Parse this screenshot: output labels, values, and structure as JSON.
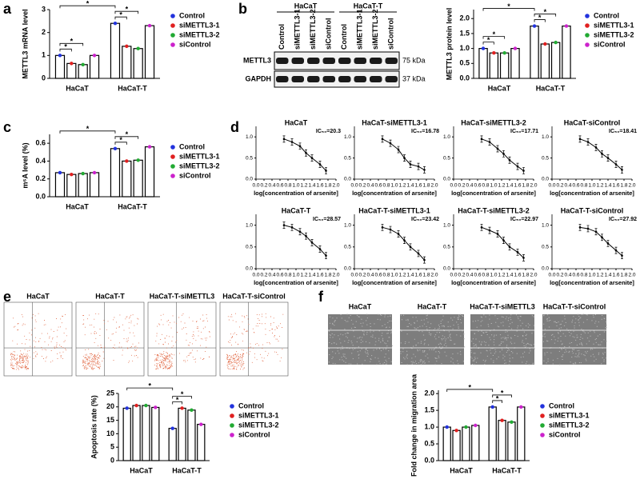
{
  "figure": {
    "panels": [
      "a",
      "b",
      "c",
      "d",
      "e",
      "f"
    ],
    "blot": {
      "groups": [
        "HaCaT",
        "HaCaT-T"
      ],
      "lanes": [
        "Control",
        "siMETTL3-1",
        "siMETTL3-2",
        "siControl",
        "Control",
        "siMETTL3-1",
        "siMETTL3-2",
        "siControl"
      ],
      "rows": [
        "METTL3",
        "GAPDH"
      ],
      "sizes": [
        "75 kDa",
        "37 kDa"
      ]
    },
    "flow_titles": [
      "HaCaT",
      "HaCaT-T",
      "HaCaT-T-siMETTL3",
      "HaCaT-T-siControl"
    ],
    "wound_titles": [
      "HaCaT",
      "HaCaT-T",
      "HaCaT-T-siMETTL3",
      "HaCaT-T-siControl"
    ]
  },
  "chart_data": [
    {
      "type": "bar",
      "ylabel": "METTL3 mRNA level",
      "categories": [
        "HaCaT",
        "HaCaT-T"
      ],
      "series": [
        {
          "name": "Control",
          "color": "#2233dd",
          "values": [
            1.0,
            2.4
          ]
        },
        {
          "name": "siMETTL3-1",
          "color": "#e02020",
          "values": [
            0.65,
            1.4
          ]
        },
        {
          "name": "siMETTL3-2",
          "color": "#22aa33",
          "values": [
            0.6,
            1.3
          ]
        },
        {
          "name": "siControl",
          "color": "#cc22cc",
          "values": [
            1.0,
            2.3
          ]
        }
      ],
      "ylim": [
        0,
        3
      ],
      "yticks": [
        0,
        1,
        2,
        3
      ],
      "significance": [
        "*",
        "*",
        "*",
        "*",
        "*"
      ]
    },
    {
      "type": "bar",
      "ylabel": "METTL3 protein level",
      "categories": [
        "HaCaT",
        "HaCaT-T"
      ],
      "series": [
        {
          "name": "Control",
          "color": "#2233dd",
          "values": [
            1.0,
            1.75
          ]
        },
        {
          "name": "siMETTL3-1",
          "color": "#e02020",
          "values": [
            0.85,
            1.15
          ]
        },
        {
          "name": "siMETTL3-2",
          "color": "#22aa33",
          "values": [
            0.85,
            1.2
          ]
        },
        {
          "name": "siControl",
          "color": "#cc22cc",
          "values": [
            1.0,
            1.75
          ]
        }
      ],
      "ylim": [
        0,
        2.3
      ],
      "yticks": [
        {
          "value": 0,
          "label": "0.0"
        },
        0.5,
        {
          "value": 1,
          "label": "1.0"
        },
        1.5,
        {
          "value": 2,
          "label": "2.0"
        }
      ],
      "significance": [
        "*",
        "*",
        "*",
        "*",
        "*"
      ]
    },
    {
      "type": "bar",
      "ylabel": "m⁶A level (%)",
      "categories": [
        "HaCaT",
        "HaCaT-T"
      ],
      "series": [
        {
          "name": "Control",
          "color": "#2233dd",
          "values": [
            0.27,
            0.54
          ]
        },
        {
          "name": "siMETTL3-1",
          "color": "#e02020",
          "values": [
            0.25,
            0.4
          ]
        },
        {
          "name": "siMETTL3-2",
          "color": "#22aa33",
          "values": [
            0.26,
            0.41
          ]
        },
        {
          "name": "siControl",
          "color": "#cc22cc",
          "values": [
            0.27,
            0.56
          ]
        }
      ],
      "ylim": [
        0,
        0.7
      ],
      "yticks": [
        {
          "value": 0,
          "label": "0.0"
        },
        0.2,
        0.4,
        0.6
      ],
      "significance": [
        "*",
        "*",
        "*"
      ]
    },
    {
      "type": "line",
      "title": "HaCaT",
      "annotation": "IC₅₀=20.3",
      "xlabel": "log[concentration of arsenite]",
      "x": [
        0.7,
        0.9,
        1.1,
        1.25,
        1.4,
        1.6,
        1.75
      ],
      "values": [
        0.95,
        0.88,
        0.78,
        0.62,
        0.5,
        0.35,
        0.2
      ],
      "color": "#000000",
      "xlim": [
        0,
        2
      ],
      "xticks": [
        {
          "value": 0,
          "label": "0.0"
        },
        0.2,
        0.4,
        0.6,
        0.8,
        {
          "value": 1,
          "label": "1.0"
        },
        1.2,
        1.4,
        1.6,
        1.8,
        {
          "value": 2,
          "label": "2.0"
        }
      ],
      "ylim": [
        0,
        1.25
      ],
      "yticks": [
        {
          "value": 0,
          "label": "0.0"
        },
        0.5,
        {
          "value": 1,
          "label": "1.0"
        }
      ]
    },
    {
      "type": "line",
      "title": "HaCaT-siMETTL3-1",
      "annotation": "IC₅₀=16.78",
      "xlabel": "log[concentration of arsenite]",
      "x": [
        0.7,
        0.9,
        1.1,
        1.25,
        1.4,
        1.6,
        1.75
      ],
      "values": [
        0.95,
        0.85,
        0.7,
        0.5,
        0.35,
        0.3,
        0.22
      ],
      "color": "#000000",
      "xlim": [
        0,
        2
      ],
      "xticks": [
        {
          "value": 0,
          "label": "0.0"
        },
        0.2,
        0.4,
        0.6,
        0.8,
        {
          "value": 1,
          "label": "1.0"
        },
        1.2,
        1.4,
        1.6,
        1.8,
        {
          "value": 2,
          "label": "2.0"
        }
      ],
      "ylim": [
        0,
        1.25
      ],
      "yticks": [
        {
          "value": 0,
          "label": "0.0"
        },
        0.5,
        {
          "value": 1,
          "label": "1.0"
        }
      ]
    },
    {
      "type": "line",
      "title": "HaCaT-siMETTL3-2",
      "annotation": "IC₅₀=17.71",
      "xlabel": "log[concentration of arsenite]",
      "x": [
        0.7,
        0.9,
        1.1,
        1.25,
        1.4,
        1.6,
        1.75
      ],
      "values": [
        0.95,
        0.88,
        0.72,
        0.6,
        0.45,
        0.3,
        0.2
      ],
      "color": "#000000",
      "xlim": [
        0,
        2
      ],
      "xticks": [
        {
          "value": 0,
          "label": "0.0"
        },
        0.2,
        0.4,
        0.6,
        0.8,
        {
          "value": 1,
          "label": "1.0"
        },
        1.2,
        1.4,
        1.6,
        1.8,
        {
          "value": 2,
          "label": "2.0"
        }
      ],
      "ylim": [
        0,
        1.25
      ],
      "yticks": [
        {
          "value": 0,
          "label": "0.0"
        },
        0.5,
        {
          "value": 1,
          "label": "1.0"
        }
      ]
    },
    {
      "type": "line",
      "title": "HaCaT-siControl",
      "annotation": "IC₅₀=18.41",
      "xlabel": "log[concentration of arsenite]",
      "x": [
        0.7,
        0.9,
        1.1,
        1.25,
        1.4,
        1.6,
        1.75
      ],
      "values": [
        0.95,
        0.88,
        0.75,
        0.6,
        0.5,
        0.35,
        0.22
      ],
      "color": "#000000",
      "xlim": [
        0,
        2
      ],
      "xticks": [
        {
          "value": 0,
          "label": "0.0"
        },
        0.2,
        0.4,
        0.6,
        0.8,
        {
          "value": 1,
          "label": "1.0"
        },
        1.2,
        1.4,
        1.6,
        1.8,
        {
          "value": 2,
          "label": "2.0"
        }
      ],
      "ylim": [
        0,
        1.25
      ],
      "yticks": [
        {
          "value": 0,
          "label": "0.0"
        },
        0.5,
        {
          "value": 1,
          "label": "1.0"
        }
      ]
    },
    {
      "type": "line",
      "title": "HaCaT-T",
      "annotation": "IC₅₀=28.57",
      "xlabel": "log[concentration of arsenite]",
      "x": [
        0.7,
        0.9,
        1.1,
        1.25,
        1.4,
        1.6,
        1.75
      ],
      "values": [
        1.0,
        0.95,
        0.85,
        0.75,
        0.6,
        0.45,
        0.3
      ],
      "color": "#000000",
      "xlim": [
        0,
        2
      ],
      "xticks": [
        {
          "value": 0,
          "label": "0.0"
        },
        0.2,
        0.4,
        0.6,
        0.8,
        {
          "value": 1,
          "label": "1.0"
        },
        1.2,
        1.4,
        1.6,
        1.8,
        {
          "value": 2,
          "label": "2.0"
        }
      ],
      "ylim": [
        0,
        1.25
      ],
      "yticks": [
        {
          "value": 0,
          "label": "0.0"
        },
        0.5,
        {
          "value": 1,
          "label": "1.0"
        }
      ]
    },
    {
      "type": "line",
      "title": "HaCaT-T-siMETTL3-1",
      "annotation": "IC₅₀=23.42",
      "xlabel": "log[concentration of arsenite]",
      "x": [
        0.7,
        0.9,
        1.1,
        1.25,
        1.4,
        1.6,
        1.75
      ],
      "values": [
        0.95,
        0.9,
        0.8,
        0.65,
        0.5,
        0.35,
        0.2
      ],
      "color": "#000000",
      "xlim": [
        0,
        2
      ],
      "xticks": [
        {
          "value": 0,
          "label": "0.0"
        },
        0.2,
        0.4,
        0.6,
        0.8,
        {
          "value": 1,
          "label": "1.0"
        },
        1.2,
        1.4,
        1.6,
        1.8,
        {
          "value": 2,
          "label": "2.0"
        }
      ],
      "ylim": [
        0,
        1.25
      ],
      "yticks": [
        {
          "value": 0,
          "label": "0.0"
        },
        0.5,
        {
          "value": 1,
          "label": "1.0"
        }
      ]
    },
    {
      "type": "line",
      "title": "HaCaT-T-siMETTL3-2",
      "annotation": "IC₅₀=22.97",
      "xlabel": "log[concentration of arsenite]",
      "x": [
        0.7,
        0.9,
        1.1,
        1.25,
        1.4,
        1.6,
        1.75
      ],
      "values": [
        0.95,
        0.88,
        0.8,
        0.65,
        0.5,
        0.38,
        0.25
      ],
      "color": "#000000",
      "xlim": [
        0,
        2
      ],
      "xticks": [
        {
          "value": 0,
          "label": "0.0"
        },
        0.2,
        0.4,
        0.6,
        0.8,
        {
          "value": 1,
          "label": "1.0"
        },
        1.2,
        1.4,
        1.6,
        1.8,
        {
          "value": 2,
          "label": "2.0"
        }
      ],
      "ylim": [
        0,
        1.25
      ],
      "yticks": [
        {
          "value": 0,
          "label": "0.0"
        },
        0.5,
        {
          "value": 1,
          "label": "1.0"
        }
      ]
    },
    {
      "type": "line",
      "title": "HaCaT-T-siControl",
      "annotation": "IC₅₀=27.92",
      "xlabel": "log[concentration of arsenite]",
      "x": [
        0.7,
        0.9,
        1.1,
        1.25,
        1.4,
        1.6,
        1.75
      ],
      "values": [
        0.95,
        0.92,
        0.85,
        0.72,
        0.58,
        0.42,
        0.3
      ],
      "color": "#000000",
      "xlim": [
        0,
        2
      ],
      "xticks": [
        {
          "value": 0,
          "label": "0.0"
        },
        0.2,
        0.4,
        0.6,
        0.8,
        {
          "value": 1,
          "label": "1.0"
        },
        1.2,
        1.4,
        1.6,
        1.8,
        {
          "value": 2,
          "label": "2.0"
        }
      ],
      "ylim": [
        0,
        1.25
      ],
      "yticks": [
        {
          "value": 0,
          "label": "0.0"
        },
        0.5,
        {
          "value": 1,
          "label": "1.0"
        }
      ]
    },
    {
      "type": "bar",
      "ylabel": "Apoptosis rate (%)",
      "categories": [
        "HaCaT",
        "HaCaT-T"
      ],
      "series": [
        {
          "name": "Control",
          "color": "#2233dd",
          "values": [
            19.5,
            12
          ]
        },
        {
          "name": "siMETTL3-1",
          "color": "#e02020",
          "values": [
            20.5,
            19.5
          ]
        },
        {
          "name": "siMETTL3-2",
          "color": "#22aa33",
          "values": [
            20.5,
            18.8
          ]
        },
        {
          "name": "siControl",
          "color": "#cc22cc",
          "values": [
            19.8,
            13.5
          ]
        }
      ],
      "ylim": [
        0,
        25
      ],
      "yticks": [
        0,
        5,
        10,
        15,
        20,
        25
      ],
      "significance": [
        "*",
        "*",
        "*"
      ]
    },
    {
      "type": "bar",
      "ylabel": "Fold change in migration area",
      "categories": [
        "HaCaT",
        "HaCaT-T"
      ],
      "series": [
        {
          "name": "Control",
          "color": "#2233dd",
          "values": [
            1.0,
            1.6
          ]
        },
        {
          "name": "siMETTL3-1",
          "color": "#e02020",
          "values": [
            0.9,
            1.2
          ]
        },
        {
          "name": "siMETTL3-2",
          "color": "#22aa33",
          "values": [
            1.0,
            1.15
          ]
        },
        {
          "name": "siControl",
          "color": "#cc22cc",
          "values": [
            1.05,
            1.6
          ]
        }
      ],
      "ylim": [
        0,
        2.1
      ],
      "yticks": [
        {
          "value": 0,
          "label": "0.0"
        },
        0.5,
        {
          "value": 1,
          "label": "1.0"
        },
        1.5,
        {
          "value": 2,
          "label": "2.0"
        }
      ],
      "significance": [
        "*",
        "*",
        "*"
      ]
    }
  ]
}
